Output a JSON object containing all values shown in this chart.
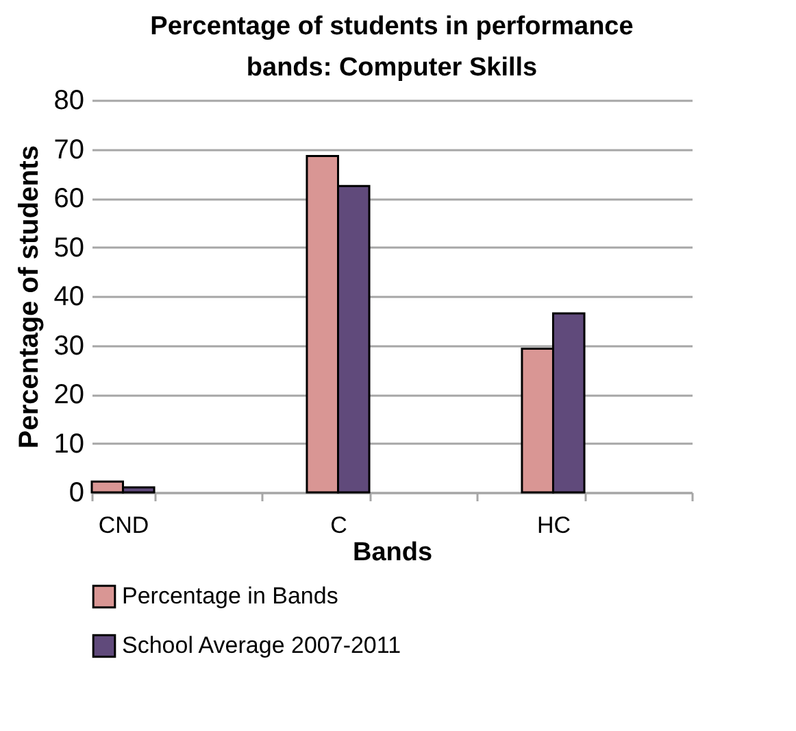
{
  "chart_data": {
    "type": "bar",
    "title": "Percentage of students in performance bands: Computer Skills",
    "xlabel": "Bands",
    "ylabel": "Percentage of students",
    "categories": [
      "CND",
      null,
      "C",
      null,
      "HC",
      null
    ],
    "series": [
      {
        "name": "Percentage in Bands",
        "color": "#d99694",
        "values": [
          2.2,
          null,
          68.6,
          null,
          29.3,
          null
        ]
      },
      {
        "name": "School Average 2007-2011",
        "color": "#604a7b",
        "values": [
          1.0,
          null,
          62.5,
          null,
          36.5,
          null
        ]
      }
    ],
    "ylim": [
      0,
      80
    ],
    "yticks": [
      0,
      10,
      20,
      30,
      40,
      50,
      60,
      70,
      80
    ],
    "grid": "y",
    "legend": "bottom left"
  }
}
